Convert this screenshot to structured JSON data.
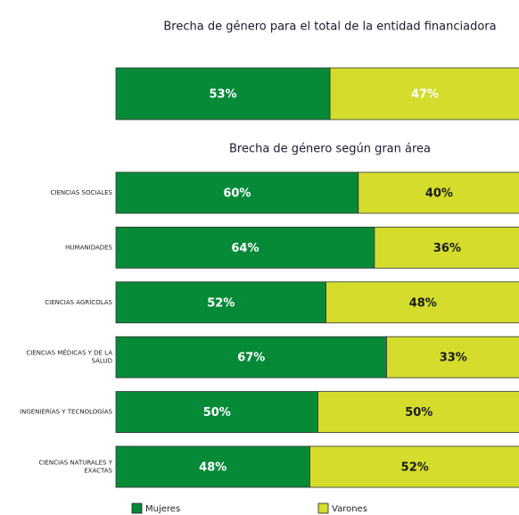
{
  "chart_data": [
    {
      "type": "bar",
      "orientation": "horizontal",
      "stacked": true,
      "title": "Brecha de género para el total de la entidad financiadora",
      "categories": [
        null
      ],
      "xlim": [
        0,
        100
      ],
      "series": [
        {
          "color": "#078a38",
          "values": [
            53
          ],
          "value_labels": [
            "53%"
          ]
        },
        {
          "color": "#d4dc2c",
          "values": [
            47
          ],
          "value_labels": [
            "47%"
          ]
        }
      ]
    },
    {
      "type": "bar",
      "orientation": "horizontal",
      "stacked": true,
      "title": "Brecha de género según gran área",
      "categories": [
        "CIENCIAS SOCIALES",
        "HUMANIDADES",
        "CIENCIAS AGRÍCOLAS",
        "CIENCIAS MÉDICAS Y DE LA SALUD",
        "INGENIERÍAS Y TECNOLOGÍAS",
        "CIENCIAS NATURALES Y EXACTAS"
      ],
      "xlim": [
        0,
        100
      ],
      "legend": "bottom",
      "series": [
        {
          "name": "Mujeres",
          "color": "#078a38",
          "values": [
            60,
            64,
            52,
            67,
            50,
            48
          ],
          "value_labels": [
            "60%",
            "64%",
            "52%",
            "67%",
            "50%",
            "48%"
          ]
        },
        {
          "name": "Varones",
          "color": "#d4dc2c",
          "values": [
            40,
            36,
            48,
            33,
            50,
            52
          ],
          "value_labels": [
            "40%",
            "36%",
            "48%",
            "33%",
            "50%",
            "52%"
          ]
        }
      ]
    }
  ]
}
